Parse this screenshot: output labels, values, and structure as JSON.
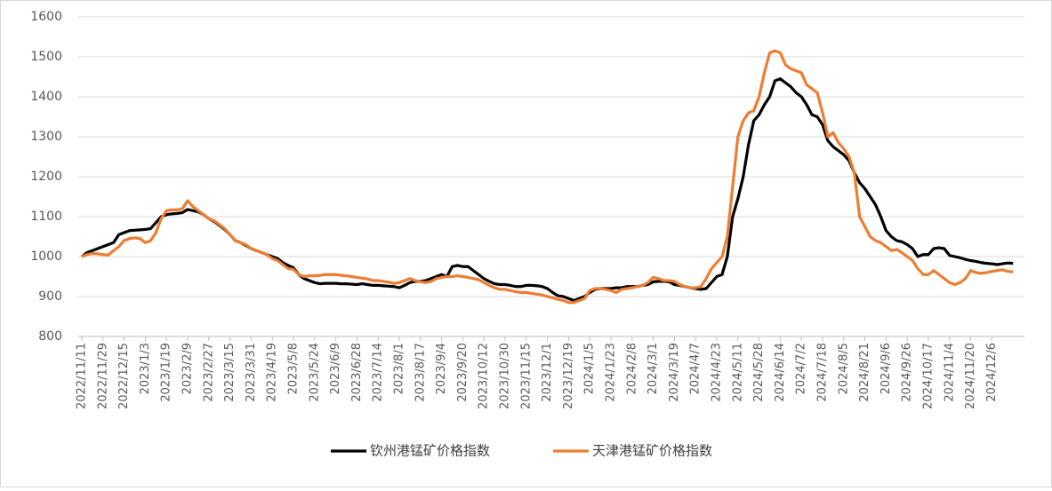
{
  "chart_data": {
    "type": "line",
    "categories": [
      "2022/11/11",
      null,
      null,
      null,
      "2022/11/29",
      null,
      null,
      null,
      "2022/12/15",
      null,
      null,
      null,
      "2023/1/3",
      null,
      null,
      null,
      "2023/1/19",
      null,
      null,
      null,
      "2023/2/9",
      null,
      null,
      null,
      "2023/2/27",
      null,
      null,
      null,
      "2023/3/15",
      null,
      null,
      null,
      "2023/3/31",
      null,
      null,
      null,
      "2023/4/19",
      null,
      null,
      null,
      "2023/5/8",
      null,
      null,
      null,
      "2023/5/24",
      null,
      null,
      null,
      "2023/6/9",
      null,
      null,
      null,
      "2023/6/28",
      null,
      null,
      null,
      "2023/7/14",
      null,
      null,
      null,
      "2023/8/1",
      null,
      null,
      null,
      "2023/8/17",
      null,
      null,
      null,
      "2023/9/4",
      null,
      null,
      null,
      "2023/9/20",
      null,
      null,
      null,
      "2023/10/12",
      null,
      null,
      null,
      "2023/10/30",
      null,
      null,
      null,
      "2023/11/15",
      null,
      null,
      null,
      "2023/12/1",
      null,
      null,
      null,
      "2023/12/19",
      null,
      null,
      null,
      "2024/1/5",
      null,
      null,
      null,
      "2024/1/23",
      null,
      null,
      null,
      "2024/2/8",
      null,
      null,
      null,
      "2024/3/1",
      null,
      null,
      null,
      "2024/3/19",
      null,
      null,
      null,
      "2024/4/7",
      null,
      null,
      null,
      "2024/4/23",
      null,
      null,
      null,
      "2024/5/11",
      null,
      null,
      null,
      "2024/5/28",
      null,
      null,
      null,
      "2024/6/14",
      null,
      null,
      null,
      "2024/7/2",
      null,
      null,
      null,
      "2024/7/18",
      null,
      null,
      null,
      "2024/8/5",
      null,
      null,
      null,
      "2024/8/21",
      null,
      null,
      null,
      "2024/9/6",
      null,
      null,
      null,
      "2024/9/26",
      null,
      null,
      null,
      "2024/10/17",
      null,
      null,
      null,
      "2024/11/4",
      null,
      null,
      null,
      "2024/11/20",
      null,
      null,
      null,
      "2024/12/6",
      null,
      null,
      null,
      null
    ],
    "series": [
      {
        "name": "钦州港锰矿价格指数",
        "color": "#000000",
        "values": [
          1000,
          1010,
          1015,
          1020,
          1025,
          1030,
          1035,
          1055,
          1060,
          1065,
          1066,
          1067,
          1068,
          1070,
          1085,
          1100,
          1105,
          1107,
          1108,
          1110,
          1118,
          1115,
          1112,
          1105,
          1095,
          1088,
          1078,
          1068,
          1055,
          1040,
          1035,
          1028,
          1020,
          1015,
          1010,
          1005,
          1000,
          995,
          985,
          978,
          972,
          955,
          945,
          940,
          935,
          932,
          933,
          933,
          933,
          932,
          932,
          931,
          930,
          932,
          930,
          928,
          928,
          927,
          926,
          925,
          922,
          928,
          935,
          938,
          938,
          940,
          945,
          950,
          955,
          950,
          975,
          978,
          975,
          975,
          965,
          955,
          945,
          938,
          932,
          930,
          930,
          928,
          925,
          925,
          928,
          928,
          927,
          925,
          920,
          910,
          902,
          900,
          895,
          890,
          895,
          900,
          910,
          918,
          920,
          920,
          920,
          922,
          922,
          925,
          925,
          925,
          928,
          930,
          937,
          938,
          938,
          937,
          930,
          928,
          925,
          922,
          920,
          918,
          920,
          935,
          950,
          955,
          1000,
          1100,
          1145,
          1200,
          1280,
          1340,
          1355,
          1380,
          1400,
          1440,
          1445,
          1435,
          1425,
          1410,
          1400,
          1380,
          1355,
          1350,
          1330,
          1290,
          1275,
          1265,
          1255,
          1240,
          1210,
          1185,
          1170,
          1150,
          1130,
          1100,
          1065,
          1050,
          1040,
          1037,
          1030,
          1020,
          1000,
          1005,
          1005,
          1020,
          1022,
          1020,
          1003,
          1000,
          997,
          993,
          990,
          988,
          985,
          983,
          982,
          980,
          982,
          984,
          983
        ]
      },
      {
        "name": "天津港锰矿价格指数",
        "color": "#ed7d31",
        "values": [
          1000,
          1005,
          1008,
          1007,
          1005,
          1004,
          1015,
          1025,
          1040,
          1045,
          1047,
          1045,
          1035,
          1040,
          1060,
          1095,
          1115,
          1117,
          1117,
          1120,
          1140,
          1125,
          1115,
          1105,
          1095,
          1090,
          1080,
          1070,
          1055,
          1040,
          1035,
          1030,
          1020,
          1015,
          1010,
          1005,
          995,
          990,
          980,
          970,
          968,
          955,
          950,
          952,
          952,
          953,
          955,
          955,
          955,
          953,
          952,
          950,
          948,
          946,
          944,
          940,
          940,
          938,
          936,
          933,
          935,
          940,
          945,
          940,
          937,
          935,
          938,
          945,
          948,
          950,
          950,
          952,
          950,
          948,
          945,
          942,
          935,
          928,
          922,
          918,
          918,
          915,
          912,
          910,
          910,
          908,
          906,
          904,
          900,
          897,
          893,
          890,
          885,
          885,
          890,
          895,
          915,
          920,
          920,
          918,
          915,
          910,
          918,
          920,
          922,
          925,
          928,
          935,
          948,
          945,
          940,
          940,
          938,
          930,
          925,
          922,
          922,
          925,
          945,
          970,
          985,
          1000,
          1050,
          1175,
          1300,
          1340,
          1360,
          1365,
          1400,
          1460,
          1510,
          1515,
          1510,
          1480,
          1470,
          1465,
          1460,
          1430,
          1420,
          1410,
          1360,
          1300,
          1310,
          1285,
          1270,
          1250,
          1210,
          1100,
          1075,
          1050,
          1040,
          1035,
          1025,
          1015,
          1018,
          1010,
          1000,
          990,
          970,
          955,
          955,
          965,
          955,
          945,
          935,
          930,
          935,
          945,
          965,
          960,
          958,
          960,
          963,
          965,
          967,
          963,
          962
        ]
      }
    ],
    "ylim": [
      800,
      1600
    ],
    "yticks": [
      800,
      900,
      1000,
      1100,
      1200,
      1300,
      1400,
      1500,
      1600
    ],
    "grid": true,
    "legend": "bottom"
  }
}
